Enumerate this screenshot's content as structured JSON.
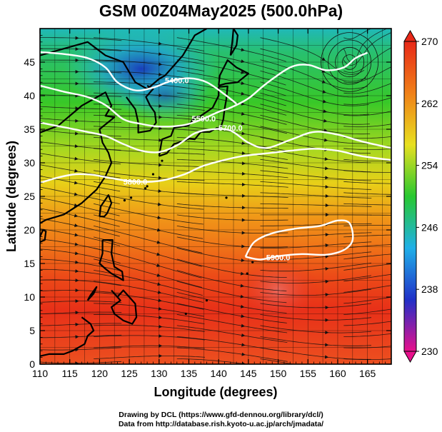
{
  "title": "GSM 00Z04May2025 (500.0hPa)",
  "credits": {
    "line1": "Drawing by DCL (https://www.gfd-dennou.org/library/dcl/)",
    "line2": "Data from http://database.rish.kyoto-u.ac.jp/arch/jmadata/"
  },
  "chart_data": {
    "type": "heatmap",
    "title": "GSM 00Z04May2025 (500.0hPa)",
    "xlabel": "Longitude (degrees)",
    "ylabel": "Latitude  (degrees)",
    "xlim": [
      110,
      169
    ],
    "ylim": [
      0,
      50
    ],
    "x_ticks": [
      110,
      115,
      120,
      125,
      130,
      135,
      140,
      145,
      150,
      155,
      160,
      165
    ],
    "y_ticks": [
      0,
      5,
      10,
      15,
      20,
      25,
      30,
      35,
      40,
      45
    ],
    "colorbar": {
      "min": 230,
      "max": 270,
      "ticks": [
        230,
        238,
        246,
        254,
        262,
        270
      ],
      "colors": [
        "#e8108c",
        "#2030c8",
        "#20b0e8",
        "#28c830",
        "#e8e020",
        "#f08018",
        "#e82818"
      ]
    },
    "contours": [
      {
        "label": "5400.0",
        "points": [
          [
            110,
            46.5
          ],
          [
            114,
            46.2
          ],
          [
            118,
            45.6
          ],
          [
            121,
            44.2
          ],
          [
            123,
            42.0
          ],
          [
            126,
            40.8
          ],
          [
            129,
            41.2
          ],
          [
            132,
            42.2
          ],
          [
            135,
            42.6
          ],
          [
            138,
            42.0
          ],
          [
            141,
            40.2
          ],
          [
            143,
            38.8
          ]
        ]
      },
      {
        "label": "5500.0",
        "points": [
          [
            110,
            41.5
          ],
          [
            114,
            40.6
          ],
          [
            118,
            39.8
          ],
          [
            121,
            38.6
          ],
          [
            124,
            36.5
          ],
          [
            127,
            35.8
          ],
          [
            130,
            35.4
          ],
          [
            134,
            35.6
          ],
          [
            137,
            36.4
          ],
          [
            140,
            37.6
          ],
          [
            142,
            38.2
          ],
          [
            145,
            39.6
          ],
          [
            148,
            41.8
          ],
          [
            152,
            44.2
          ],
          [
            155,
            44.6
          ],
          [
            158,
            43.8
          ],
          [
            161,
            44.2
          ],
          [
            163,
            45.6
          ],
          [
            165,
            46.4
          ]
        ]
      },
      {
        "label": "5700.0",
        "points": [
          [
            110,
            36.0
          ],
          [
            114,
            35.3
          ],
          [
            118,
            34.6
          ],
          [
            121,
            34.0
          ],
          [
            124,
            32.8
          ],
          [
            127,
            31.8
          ],
          [
            130,
            31.6
          ],
          [
            133,
            32.6
          ],
          [
            136,
            34.4
          ],
          [
            139,
            35.0
          ],
          [
            142,
            34.8
          ],
          [
            145,
            33.0
          ],
          [
            148,
            32.2
          ],
          [
            152,
            33.4
          ],
          [
            156,
            34.6
          ],
          [
            160,
            34.2
          ],
          [
            164,
            33.2
          ],
          [
            169,
            32.2
          ]
        ]
      },
      {
        "label": "5800.0",
        "points": [
          [
            110,
            27.0
          ],
          [
            113,
            27.8
          ],
          [
            116,
            28.3
          ],
          [
            119,
            28.2
          ],
          [
            122,
            27.7
          ],
          [
            126,
            27.2
          ],
          [
            130,
            27.3
          ],
          [
            134,
            28.2
          ],
          [
            137,
            29.4
          ],
          [
            140,
            30.2
          ],
          [
            144,
            31.0
          ],
          [
            148,
            31.4
          ],
          [
            152,
            31.8
          ],
          [
            156,
            32.1
          ],
          [
            160,
            31.8
          ],
          [
            164,
            31.0
          ],
          [
            169,
            30.4
          ]
        ]
      },
      {
        "label": "5900.0",
        "points": [
          [
            144.5,
            16.0
          ],
          [
            146,
            18.2
          ],
          [
            149,
            19.5
          ],
          [
            153,
            20.2
          ],
          [
            157,
            20.6
          ],
          [
            160,
            21.4
          ],
          [
            162,
            21.0
          ],
          [
            162.5,
            18.5
          ],
          [
            161,
            17.0
          ],
          [
            158,
            16.3
          ],
          [
            154,
            16.4
          ],
          [
            150,
            16.1
          ],
          [
            147,
            15.6
          ],
          [
            144.5,
            16.0
          ]
        ]
      }
    ],
    "vortex_center": [
      162,
      45
    ]
  }
}
